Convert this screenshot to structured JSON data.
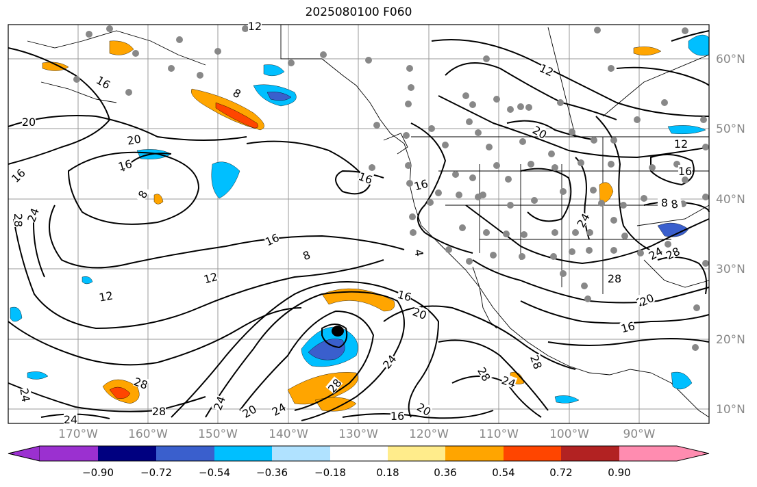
{
  "title": "2025080100 F060",
  "lat_labels": [
    "60°N",
    "50°N",
    "40°N",
    "30°N",
    "20°N",
    "10°N"
  ],
  "lon_labels": [
    "170°W",
    "160°W",
    "150°W",
    "140°W",
    "130°W",
    "120°W",
    "110°W",
    "100°W",
    "90°W"
  ],
  "contour_labels": [
    "16",
    "20",
    "20",
    "12",
    "8",
    "16",
    "24",
    "28",
    "16",
    "8",
    "12",
    "12",
    "16",
    "16",
    "4",
    "12",
    "8",
    "12",
    "20",
    "16",
    "16",
    "20",
    "24",
    "28",
    "20",
    "24",
    "24",
    "28",
    "24",
    "28",
    "16",
    "20",
    "24",
    "28",
    "20",
    "8",
    "24",
    "28",
    "16",
    "20",
    "28",
    "24",
    "16",
    "8",
    "28",
    "24"
  ],
  "colorbar": {
    "ticks": [
      "−0.90",
      "−0.72",
      "−0.54",
      "−0.36",
      "−0.18",
      "0.18",
      "0.36",
      "0.54",
      "0.72",
      "0.90"
    ],
    "colors": [
      "#9b30d0",
      "#000080",
      "#3a5fcd",
      "#00bfff",
      "#b0e2ff",
      "#ffffff",
      "#ffec8b",
      "#ffa500",
      "#ff4500",
      "#b22222",
      "#ff8cb0"
    ]
  }
}
